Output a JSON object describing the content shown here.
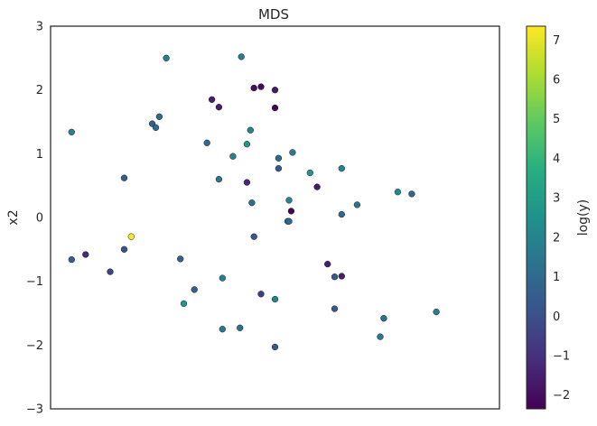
{
  "chart_data": {
    "type": "scatter",
    "title": "MDS",
    "xlabel": "",
    "ylabel": "x2",
    "xlim": [
      -3.2,
      3.2
    ],
    "ylim": [
      -3,
      3
    ],
    "xticks": [],
    "yticks": [
      -3,
      -2,
      -1,
      0,
      1,
      2,
      3
    ],
    "grid": false,
    "colorbar": {
      "label": "log(y)",
      "range": [
        -2.35,
        7.35
      ],
      "ticks": [
        -2,
        -1,
        0,
        1,
        2,
        3,
        4,
        5,
        6,
        7
      ],
      "colormap": "viridis"
    },
    "points": [
      {
        "x": -1.55,
        "y": 2.5,
        "c": 1.8
      },
      {
        "x": -0.48,
        "y": 2.52,
        "c": 1.7
      },
      {
        "x": -0.3,
        "y": 2.03,
        "c": -2.0
      },
      {
        "x": -0.2,
        "y": 2.05,
        "c": -2.1
      },
      {
        "x": 0.0,
        "y": 2.0,
        "c": -1.7
      },
      {
        "x": -0.9,
        "y": 1.85,
        "c": -1.6
      },
      {
        "x": -0.8,
        "y": 1.73,
        "c": -1.5
      },
      {
        "x": 0.0,
        "y": 1.72,
        "c": -2.2
      },
      {
        "x": -2.9,
        "y": 1.34,
        "c": 2.0
      },
      {
        "x": -1.65,
        "y": 1.58,
        "c": 1.0
      },
      {
        "x": -1.75,
        "y": 1.47,
        "c": 0.5
      },
      {
        "x": -1.7,
        "y": 1.41,
        "c": 1.0
      },
      {
        "x": -0.35,
        "y": 1.37,
        "c": 2.0
      },
      {
        "x": -0.97,
        "y": 1.17,
        "c": 1.0
      },
      {
        "x": -0.4,
        "y": 1.15,
        "c": 2.7
      },
      {
        "x": 0.25,
        "y": 1.02,
        "c": 1.6
      },
      {
        "x": -0.6,
        "y": 0.96,
        "c": 2.0
      },
      {
        "x": 0.05,
        "y": 0.93,
        "c": 1.0
      },
      {
        "x": 0.05,
        "y": 0.77,
        "c": 0.2
      },
      {
        "x": 0.95,
        "y": 0.77,
        "c": 2.0
      },
      {
        "x": 0.5,
        "y": 0.7,
        "c": 2.7
      },
      {
        "x": -2.15,
        "y": 0.62,
        "c": 0.6
      },
      {
        "x": -0.8,
        "y": 0.6,
        "c": 1.4
      },
      {
        "x": -0.4,
        "y": 0.55,
        "c": -1.3
      },
      {
        "x": 0.6,
        "y": 0.48,
        "c": -1.7
      },
      {
        "x": 1.75,
        "y": 0.4,
        "c": 2.3
      },
      {
        "x": 1.95,
        "y": 0.37,
        "c": 0.9
      },
      {
        "x": 0.2,
        "y": 0.27,
        "c": 2.0
      },
      {
        "x": -0.33,
        "y": 0.23,
        "c": 1.1
      },
      {
        "x": 1.17,
        "y": 0.2,
        "c": 1.3
      },
      {
        "x": 0.23,
        "y": 0.1,
        "c": -2.2
      },
      {
        "x": 0.95,
        "y": 0.05,
        "c": 0.9
      },
      {
        "x": 0.18,
        "y": -0.06,
        "c": 1.8
      },
      {
        "x": 0.2,
        "y": -0.06,
        "c": 0.9
      },
      {
        "x": -2.05,
        "y": -0.3,
        "c": 7.3
      },
      {
        "x": -0.3,
        "y": -0.3,
        "c": 0.2
      },
      {
        "x": -2.15,
        "y": -0.5,
        "c": 0.2
      },
      {
        "x": -2.7,
        "y": -0.58,
        "c": -1.3
      },
      {
        "x": -2.9,
        "y": -0.66,
        "c": 0.5
      },
      {
        "x": -1.35,
        "y": -0.65,
        "c": 0.6
      },
      {
        "x": 0.75,
        "y": -0.73,
        "c": -1.5
      },
      {
        "x": -2.35,
        "y": -0.85,
        "c": -0.4
      },
      {
        "x": 0.85,
        "y": -0.93,
        "c": 0.4
      },
      {
        "x": 0.95,
        "y": -0.92,
        "c": -1.5
      },
      {
        "x": -0.75,
        "y": -0.95,
        "c": 1.8
      },
      {
        "x": -1.15,
        "y": -1.13,
        "c": 0.5
      },
      {
        "x": -0.2,
        "y": -1.2,
        "c": -0.5
      },
      {
        "x": 0.0,
        "y": -1.28,
        "c": 1.9
      },
      {
        "x": -1.3,
        "y": -1.35,
        "c": 2.7
      },
      {
        "x": 0.85,
        "y": -1.43,
        "c": 0.3
      },
      {
        "x": 1.55,
        "y": -1.58,
        "c": 1.2
      },
      {
        "x": 2.3,
        "y": -1.48,
        "c": 1.8
      },
      {
        "x": -0.75,
        "y": -1.75,
        "c": 1.4
      },
      {
        "x": -0.5,
        "y": -1.73,
        "c": 1.2
      },
      {
        "x": 1.5,
        "y": -1.87,
        "c": 1.6
      },
      {
        "x": 0.0,
        "y": -2.03,
        "c": 0.3
      }
    ]
  }
}
